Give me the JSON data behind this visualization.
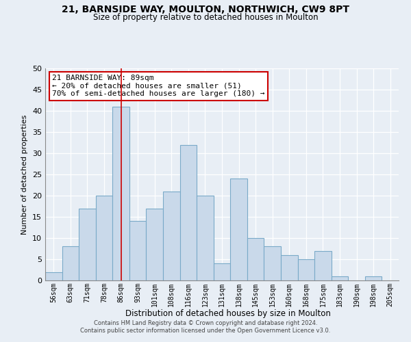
{
  "title1": "21, BARNSIDE WAY, MOULTON, NORTHWICH, CW9 8PT",
  "title2": "Size of property relative to detached houses in Moulton",
  "xlabel": "Distribution of detached houses by size in Moulton",
  "ylabel": "Number of detached properties",
  "categories": [
    "56sqm",
    "63sqm",
    "71sqm",
    "78sqm",
    "86sqm",
    "93sqm",
    "101sqm",
    "108sqm",
    "116sqm",
    "123sqm",
    "131sqm",
    "138sqm",
    "145sqm",
    "153sqm",
    "160sqm",
    "168sqm",
    "175sqm",
    "183sqm",
    "190sqm",
    "198sqm",
    "205sqm"
  ],
  "values": [
    2,
    8,
    17,
    20,
    41,
    14,
    17,
    21,
    32,
    20,
    4,
    24,
    10,
    8,
    6,
    5,
    7,
    1,
    0,
    1,
    0
  ],
  "bar_color": "#c9d9ea",
  "bar_edge_color": "#7aaac8",
  "highlight_bar_index": 4,
  "highlight_line_color": "#cc0000",
  "ylim": [
    0,
    50
  ],
  "yticks": [
    0,
    5,
    10,
    15,
    20,
    25,
    30,
    35,
    40,
    45,
    50
  ],
  "annotation_title": "21 BARNSIDE WAY: 89sqm",
  "annotation_line1": "← 20% of detached houses are smaller (51)",
  "annotation_line2": "70% of semi-detached houses are larger (180) →",
  "annotation_box_color": "#ffffff",
  "annotation_box_edge": "#cc0000",
  "footer1": "Contains HM Land Registry data © Crown copyright and database right 2024.",
  "footer2": "Contains public sector information licensed under the Open Government Licence v3.0.",
  "bg_color": "#e8eef5",
  "grid_color": "#ffffff",
  "plot_bg_color": "#e8eef5"
}
